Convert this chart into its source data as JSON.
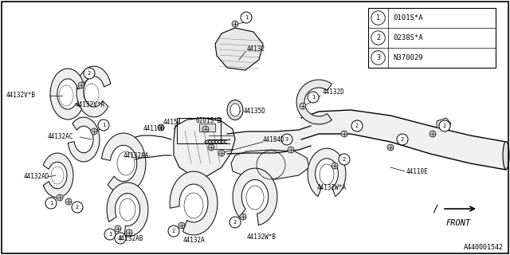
{
  "bg_color": "#ffffff",
  "line_color": "#000000",
  "border_color": "#000000",
  "legend_items": [
    {
      "num": "1",
      "code": "0101S*A"
    },
    {
      "num": "2",
      "code": "0238S*A"
    },
    {
      "num": "3",
      "code": "N370029"
    }
  ],
  "footer": "A440001542",
  "fig_w": 6.4,
  "fig_h": 3.2,
  "dpi": 100
}
